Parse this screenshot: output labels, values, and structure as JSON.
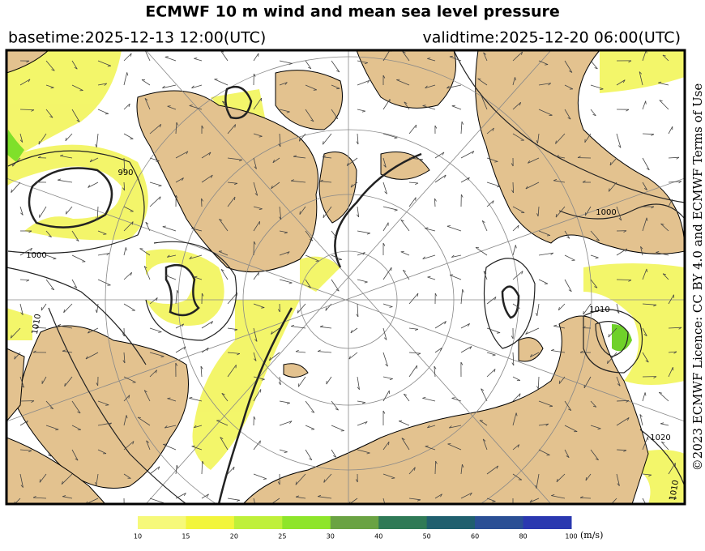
{
  "header": {
    "title": "ECMWF 10 m wind and mean sea level pressure",
    "basetime": "basetime:2025-12-13 12:00(UTC)",
    "validtime": "validtime:2025-12-20 06:00(UTC)",
    "licence": "©2023 ECMWF Licence: CC BY 4.0 and ECMWF Terms of Use"
  },
  "map": {
    "contour_labels": [
      "990",
      "1000",
      "1010",
      "1010",
      "1000",
      "1020",
      "1010"
    ]
  },
  "colorbar": {
    "labels": [
      "10",
      "15",
      "20",
      "25",
      "30",
      "40",
      "50",
      "60",
      "80",
      "100"
    ],
    "colors": [
      "#f6f97a",
      "#f2f53c",
      "#bff03a",
      "#8ee52a",
      "#6aa343",
      "#2f7a56",
      "#1f5f6e",
      "#2a4f95",
      "#2a38b0"
    ],
    "unit": "(m/s)"
  }
}
